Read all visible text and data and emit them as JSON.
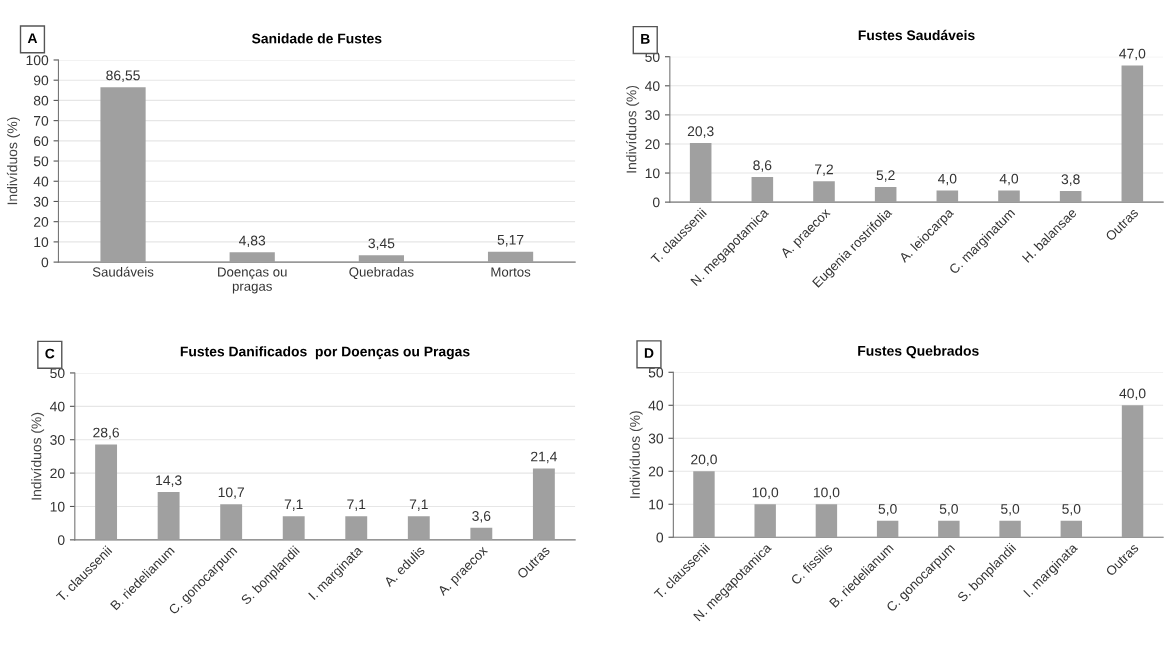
{
  "chart_data": [
    {
      "type": "bar",
      "title": "Sanidade de Fustes",
      "ylabel": "Indivíduos (%)",
      "annotations": [
        "A"
      ],
      "categories": [
        "Saudáveis",
        "Doenças ou\npragas",
        "Quebradas",
        "Mortos"
      ],
      "values": [
        86.55,
        4.83,
        3.45,
        5.17
      ],
      "value_labels": [
        "86,55",
        "4,83",
        "3,45",
        "5,17"
      ],
      "color": "#a0a0a0",
      "ylim": [
        0,
        100
      ],
      "yticks": [
        0,
        10,
        20,
        30,
        40,
        50,
        60,
        70,
        80,
        90,
        100
      ],
      "grid": "y",
      "legend": false
    },
    {
      "type": "bar",
      "title": "Fustes Saudáveis",
      "ylabel": "Indivíduos (%)",
      "annotations": [
        "B"
      ],
      "categories": [
        "T. claussenii",
        "N. megapotamica",
        "A. praecox",
        "Eugenia rostrifolia",
        "A. leiocarpa",
        "C. marginatum",
        "H. balansae",
        "Outras"
      ],
      "values": [
        20.3,
        8.6,
        7.2,
        5.2,
        4.0,
        4.0,
        3.8,
        47.0
      ],
      "value_labels": [
        "20,3",
        "8,6",
        "7,2",
        "5,2",
        "4,0",
        "4,0",
        "3,8",
        "47,0"
      ],
      "color": "#a0a0a0",
      "ylim": [
        0,
        50
      ],
      "yticks": [
        0,
        10,
        20,
        30,
        40,
        50
      ],
      "grid": "y",
      "legend": false
    },
    {
      "type": "bar",
      "title": "Fustes Danificados  por Doenças ou Pragas",
      "ylabel": "Indivíduos (%)",
      "annotations": [
        "C"
      ],
      "categories": [
        "T. claussenii",
        "B. riedelianum",
        "C. gonocarpum",
        "S. bonplandii",
        "I. marginata",
        "A. edulis",
        "A. praecox",
        "Outras"
      ],
      "values": [
        28.6,
        14.3,
        10.7,
        7.1,
        7.1,
        7.1,
        3.6,
        21.4
      ],
      "value_labels": [
        "28,6",
        "14,3",
        "10,7",
        "7,1",
        "7,1",
        "7,1",
        "3,6",
        "21,4"
      ],
      "color": "#a0a0a0",
      "ylim": [
        0,
        50
      ],
      "yticks": [
        0,
        10,
        20,
        30,
        40,
        50
      ],
      "grid": "y",
      "legend": false
    },
    {
      "type": "bar",
      "title": "Fustes Quebrados",
      "ylabel": "Indivíduos (%)",
      "annotations": [
        "D"
      ],
      "categories": [
        "T. claussenii",
        "N. megapotamica",
        "C. fissilis",
        "B. riedelianum",
        "C. gonocarpum",
        "S. bonplandii",
        "I. marginata",
        "Outras"
      ],
      "values": [
        20.0,
        10.0,
        10.0,
        5.0,
        5.0,
        5.0,
        5.0,
        40.0
      ],
      "value_labels": [
        "20,0",
        "10,0",
        "10,0",
        "5,0",
        "5,0",
        "5,0",
        "5,0",
        "40,0"
      ],
      "color": "#a0a0a0",
      "ylim": [
        0,
        50
      ],
      "yticks": [
        0,
        10,
        20,
        30,
        40,
        50
      ],
      "grid": "y",
      "legend": false
    }
  ]
}
